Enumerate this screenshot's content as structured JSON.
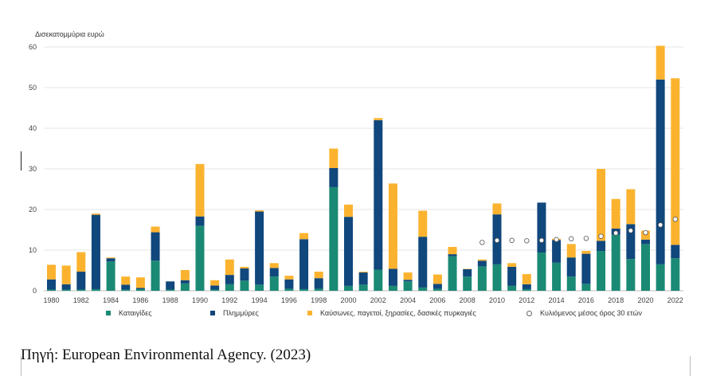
{
  "chart_data": {
    "type": "bar",
    "stacked": true,
    "ylabel": "Δισεκατομμύρια ευρώ",
    "ylim": [
      0,
      60
    ],
    "yticks": [
      0,
      10,
      20,
      30,
      40,
      50,
      60
    ],
    "xticks": [
      "1980",
      "1982",
      "1984",
      "1986",
      "1988",
      "1990",
      "1992",
      "1994",
      "1996",
      "1998",
      "2000",
      "2002",
      "2004",
      "2006",
      "2008",
      "2010",
      "2012",
      "2014",
      "2016",
      "2018",
      "2020",
      "2022"
    ],
    "categories": [
      "1980",
      "1981",
      "1982",
      "1983",
      "1984",
      "1985",
      "1986",
      "1987",
      "1988",
      "1989",
      "1990",
      "1991",
      "1992",
      "1993",
      "1994",
      "1995",
      "1996",
      "1997",
      "1998",
      "1999",
      "2000",
      "2001",
      "2002",
      "2003",
      "2004",
      "2005",
      "2006",
      "2007",
      "2008",
      "2009",
      "2010",
      "2011",
      "2012",
      "2013",
      "2014",
      "2015",
      "2016",
      "2017",
      "2018",
      "2019",
      "2020",
      "2021",
      "2022"
    ],
    "series": [
      {
        "name": "Καταιγίδες",
        "color": "#1a8a74",
        "values": [
          0.3,
          0.3,
          0.3,
          0.4,
          7.2,
          0.3,
          0.4,
          7.4,
          0.3,
          1.8,
          16.0,
          0.3,
          1.6,
          2.5,
          1.5,
          3.5,
          0.5,
          0.4,
          0.5,
          25.5,
          1.2,
          1.5,
          5.2,
          1.2,
          2.3,
          0.8,
          0.5,
          8.5,
          3.5,
          6.0,
          6.5,
          1.2,
          0.4,
          9.4,
          6.9,
          3.5,
          1.7,
          9.8,
          13.8,
          7.8,
          11.5,
          6.5,
          8.0
        ]
      },
      {
        "name": "Πλημμύρες",
        "color": "#10477c",
        "values": [
          2.5,
          1.3,
          4.4,
          18.3,
          0.8,
          1.2,
          0.3,
          7.0,
          2.0,
          0.8,
          2.3,
          1.0,
          2.3,
          3.0,
          18.0,
          2.1,
          2.3,
          12.3,
          2.6,
          4.7,
          17.0,
          3.0,
          36.8,
          4.2,
          0.4,
          12.5,
          1.2,
          0.5,
          1.8,
          1.4,
          12.3,
          4.7,
          1.2,
          12.3,
          5.6,
          4.7,
          7.4,
          2.5,
          1.5,
          8.6,
          1.1,
          45.5,
          3.3
        ]
      },
      {
        "name": "Καύσωνες, παγετοί, ξηρασίες, δασικές πυρκαγιές",
        "color": "#fbb32f",
        "values": [
          3.6,
          4.6,
          4.8,
          0.3,
          0.2,
          2.0,
          2.6,
          1.4,
          0.0,
          2.5,
          12.9,
          1.3,
          3.8,
          0.4,
          0.3,
          1.2,
          0.9,
          1.5,
          1.6,
          4.8,
          3.0,
          0.2,
          0.5,
          21.0,
          1.8,
          6.4,
          2.3,
          1.8,
          0.1,
          0.3,
          2.7,
          0.9,
          2.5,
          0.0,
          0.3,
          3.3,
          0.7,
          17.7,
          7.3,
          8.6,
          2.2,
          8.3,
          41.0
        ]
      },
      {
        "name": "Κυλιόμενος μέσος όρος 30 ετών",
        "color": "#ffffff",
        "marker": "circle",
        "x": [
          "2009",
          "2010",
          "2011",
          "2012",
          "2013",
          "2014",
          "2015",
          "2016",
          "2017",
          "2018",
          "2019",
          "2020",
          "2021",
          "2022"
        ],
        "values": [
          11.9,
          12.4,
          12.4,
          12.3,
          12.4,
          12.6,
          12.8,
          12.9,
          13.4,
          14.2,
          14.8,
          14.3,
          16.2,
          17.6
        ]
      }
    ],
    "grid": true,
    "legend_position": "bottom"
  },
  "source": "Πηγή: European Environmental Agency. (2023)"
}
